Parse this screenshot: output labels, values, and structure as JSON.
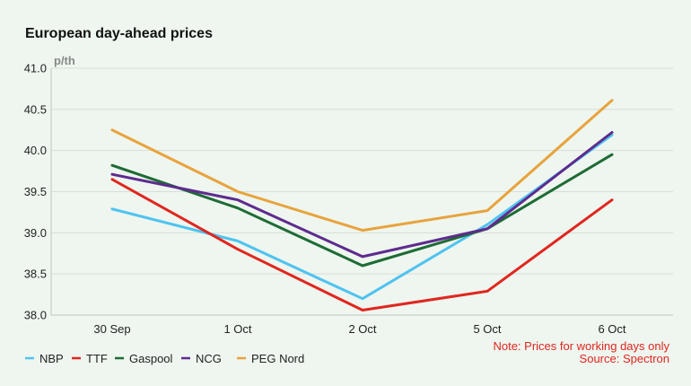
{
  "chart_data": {
    "type": "line",
    "title": "European day-ahead prices",
    "y_unit": "p/th",
    "categories": [
      "30 Sep",
      "1 Oct",
      "2 Oct",
      "5 Oct",
      "6 Oct"
    ],
    "ylim": [
      38.0,
      41.0
    ],
    "yticks": [
      38.0,
      38.5,
      39.0,
      39.5,
      40.0,
      40.5,
      41.0
    ],
    "ytick_labels": [
      "38.0",
      "38.5",
      "39.0",
      "39.5",
      "40.0",
      "40.5",
      "41.0"
    ],
    "grid": true,
    "legend_position": "bottom-left",
    "series": [
      {
        "name": "NBP",
        "color": "#4fc3f0",
        "values": [
          39.29,
          38.9,
          38.2,
          39.1,
          40.19
        ]
      },
      {
        "name": "TTF",
        "color": "#e0261f",
        "values": [
          39.65,
          38.8,
          38.06,
          38.29,
          39.4
        ]
      },
      {
        "name": "Gaspool",
        "color": "#1e6b35",
        "values": [
          39.82,
          39.3,
          38.6,
          39.05,
          39.95
        ]
      },
      {
        "name": "NCG",
        "color": "#5e2b8e",
        "values": [
          39.71,
          39.4,
          38.71,
          39.05,
          40.22
        ]
      },
      {
        "name": "PEG Nord",
        "color": "#e8a33c",
        "values": [
          40.25,
          39.5,
          39.03,
          39.27,
          40.61
        ]
      }
    ],
    "annotations": [
      "Note: Prices for working days only",
      "Source: Spectron"
    ]
  }
}
